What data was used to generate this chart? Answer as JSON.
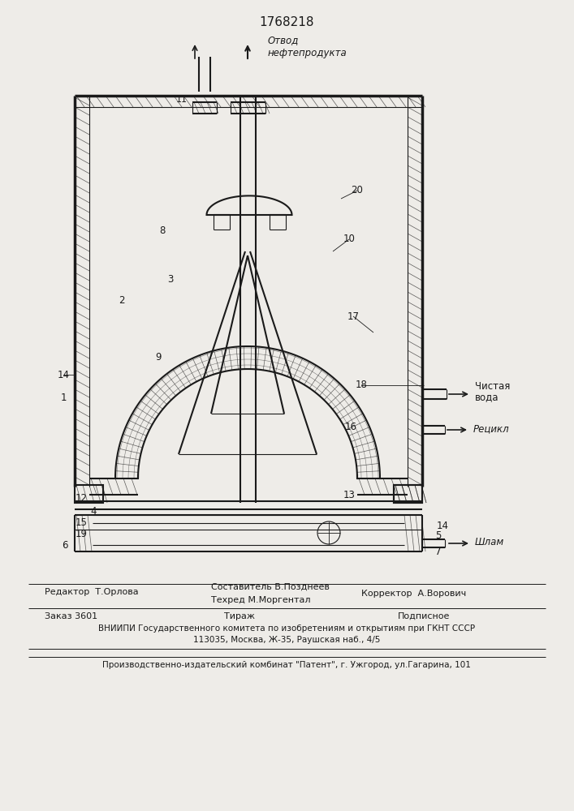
{
  "patent_number": "1768218",
  "bg_color": "#eeece8",
  "line_color": "#1a1a1a",
  "label_отвод": "Отвод",
  "label_нефтепродукта": "нефтепродукта",
  "label_чистая": "Чистая",
  "label_вода": "вода",
  "label_рецикл": "Рецикл",
  "label_шлам": "Шлам",
  "editor_line": "Редактор  Т.Орлова",
  "compiler_line1": "Составитель В.Позднеев",
  "compiler_line2": "Техред М.Моргентал",
  "corrector_line": "Корректор  А.Ворович",
  "order_line": "Заказ 3601",
  "tirazh_line": "Тираж",
  "podpisnoe_line": "Подписное",
  "vniiipi_line": "ВНИИПИ Государственного комитета по изобретениям и открытиям при ГКНТ СССР",
  "address_line": "113035, Москва, Ж-35, Раушская наб., 4/5",
  "factory_line": "Производственно-издательский комбинат \"Патент\", г. Ужгород, ул.Гагарина, 101"
}
